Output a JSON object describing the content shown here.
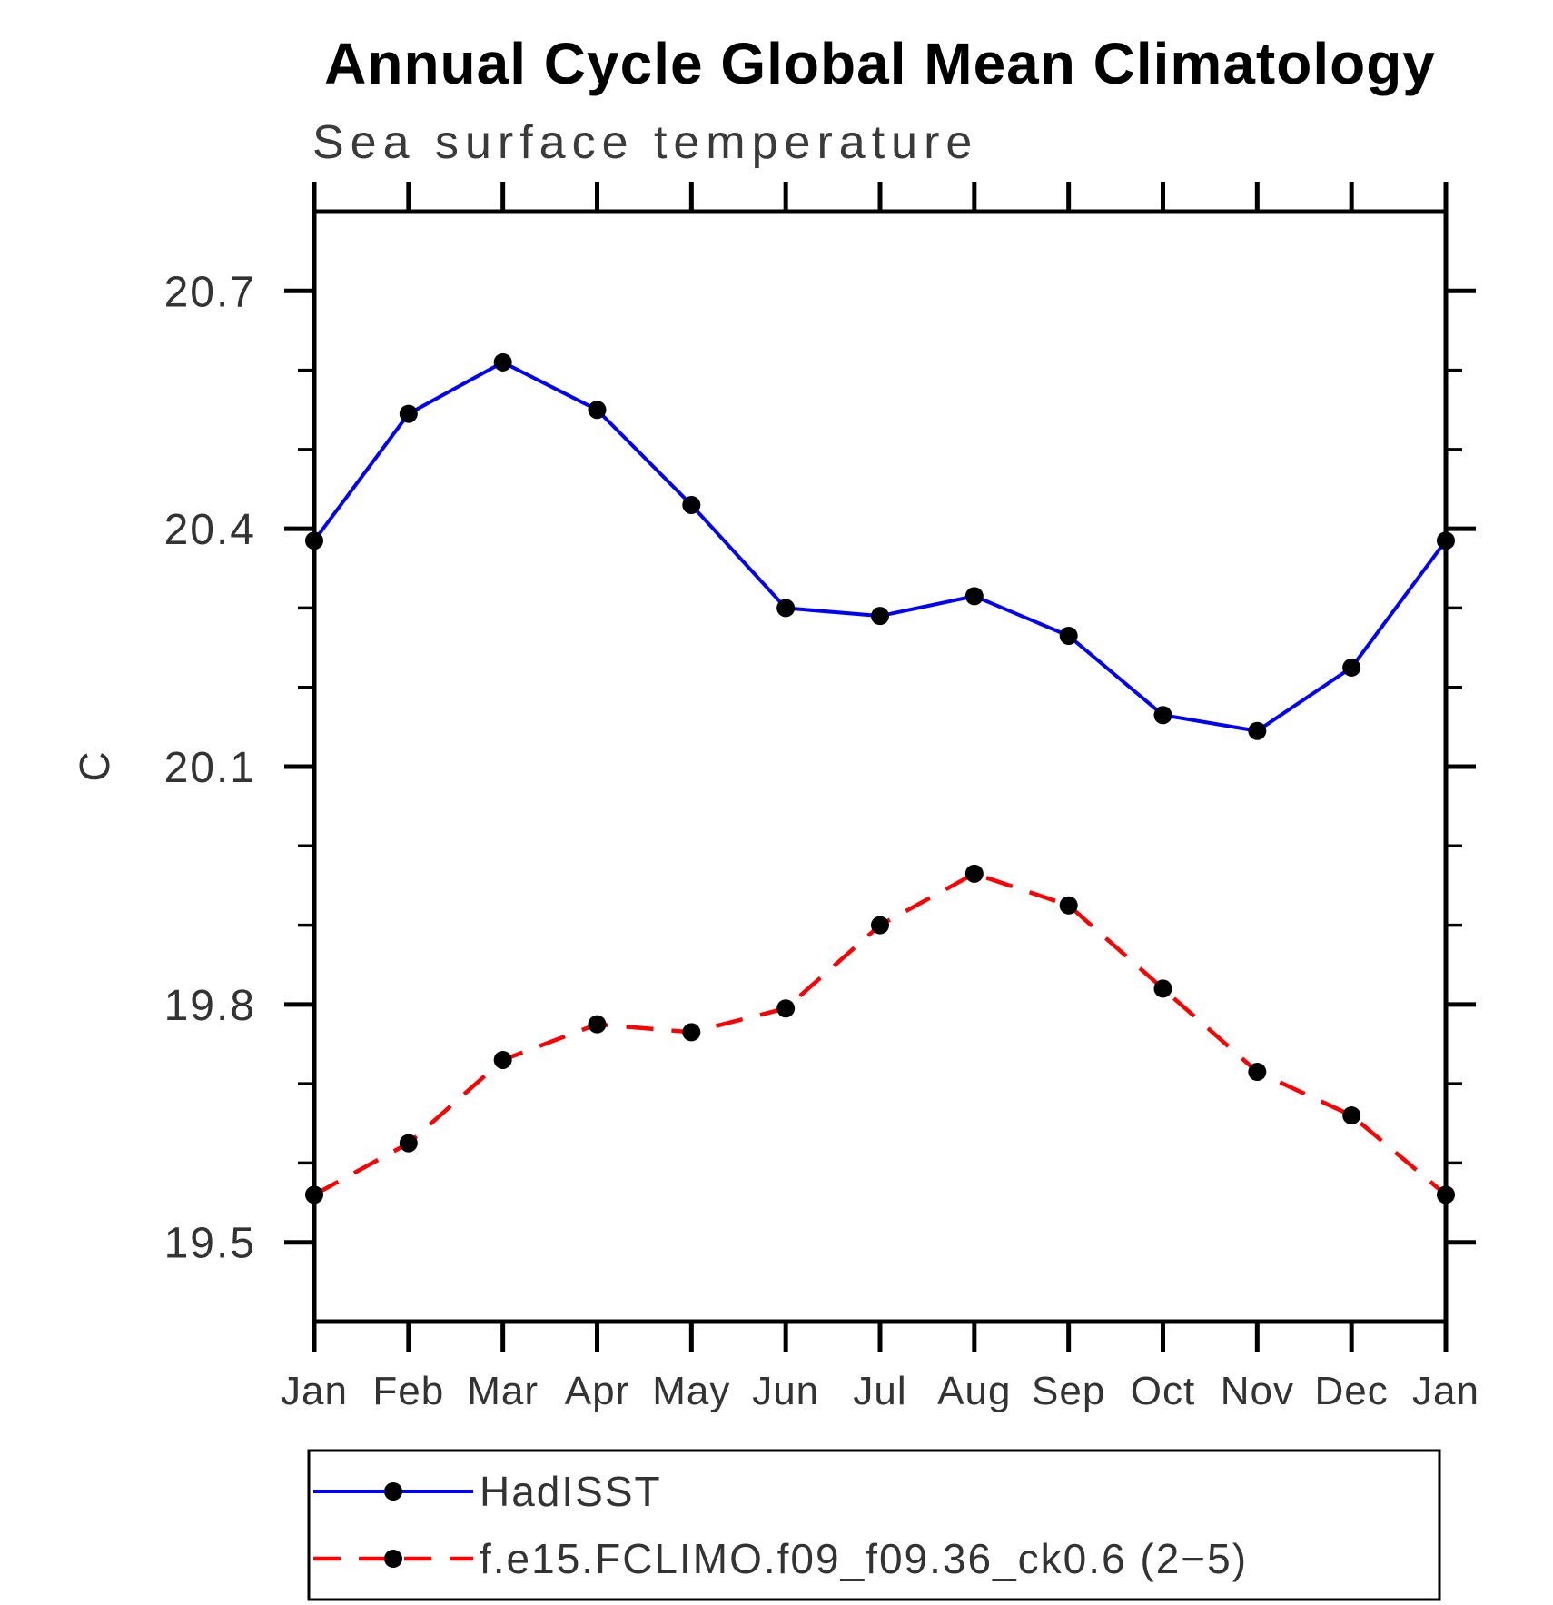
{
  "page": {
    "background_color": "#ffffff",
    "frame_color": "#000000"
  },
  "chart_data": {
    "type": "line",
    "title": "Annual Cycle Global Mean Climatology",
    "subtitle": "Sea surface temperature",
    "xlabel": "",
    "ylabel": "C",
    "categories": [
      "Jan",
      "Feb",
      "Mar",
      "Apr",
      "May",
      "Jun",
      "Jul",
      "Aug",
      "Sep",
      "Oct",
      "Nov",
      "Dec",
      "Jan"
    ],
    "series": [
      {
        "name": "HadISST",
        "color": "#0000ff",
        "line_style": "solid",
        "line_width": 4,
        "marker": "filled-circle",
        "marker_color": "#000000",
        "values": [
          20.385,
          20.545,
          20.61,
          20.55,
          20.43,
          20.3,
          20.29,
          20.315,
          20.265,
          20.165,
          20.145,
          20.225,
          20.385
        ]
      },
      {
        "name": "f.e15.FCLIMO.f09_f09.36_ck0.6 (2−5)",
        "color": "#ff0000",
        "line_style": "dashed",
        "line_width": 4.5,
        "marker": "filled-circle",
        "marker_color": "#000000",
        "values": [
          19.56,
          19.625,
          19.73,
          19.775,
          19.765,
          19.795,
          19.9,
          19.965,
          19.925,
          19.82,
          19.715,
          19.66,
          19.56
        ]
      }
    ],
    "ylim": [
      19.4,
      20.8
    ],
    "y_major_ticks": [
      19.5,
      19.8,
      20.1,
      20.4,
      20.7
    ],
    "y_major_tick_labels": [
      "19.5",
      "19.8",
      "20.1",
      "20.4",
      "20.7"
    ],
    "y_minor_step": 0.1,
    "grid": "off",
    "legend_position": "bottom"
  },
  "legend": {
    "entries": [
      {
        "label": "HadISST"
      },
      {
        "label": "f.e15.FCLIMO.f09_f09.36_ck0.6 (2−5)"
      }
    ]
  }
}
